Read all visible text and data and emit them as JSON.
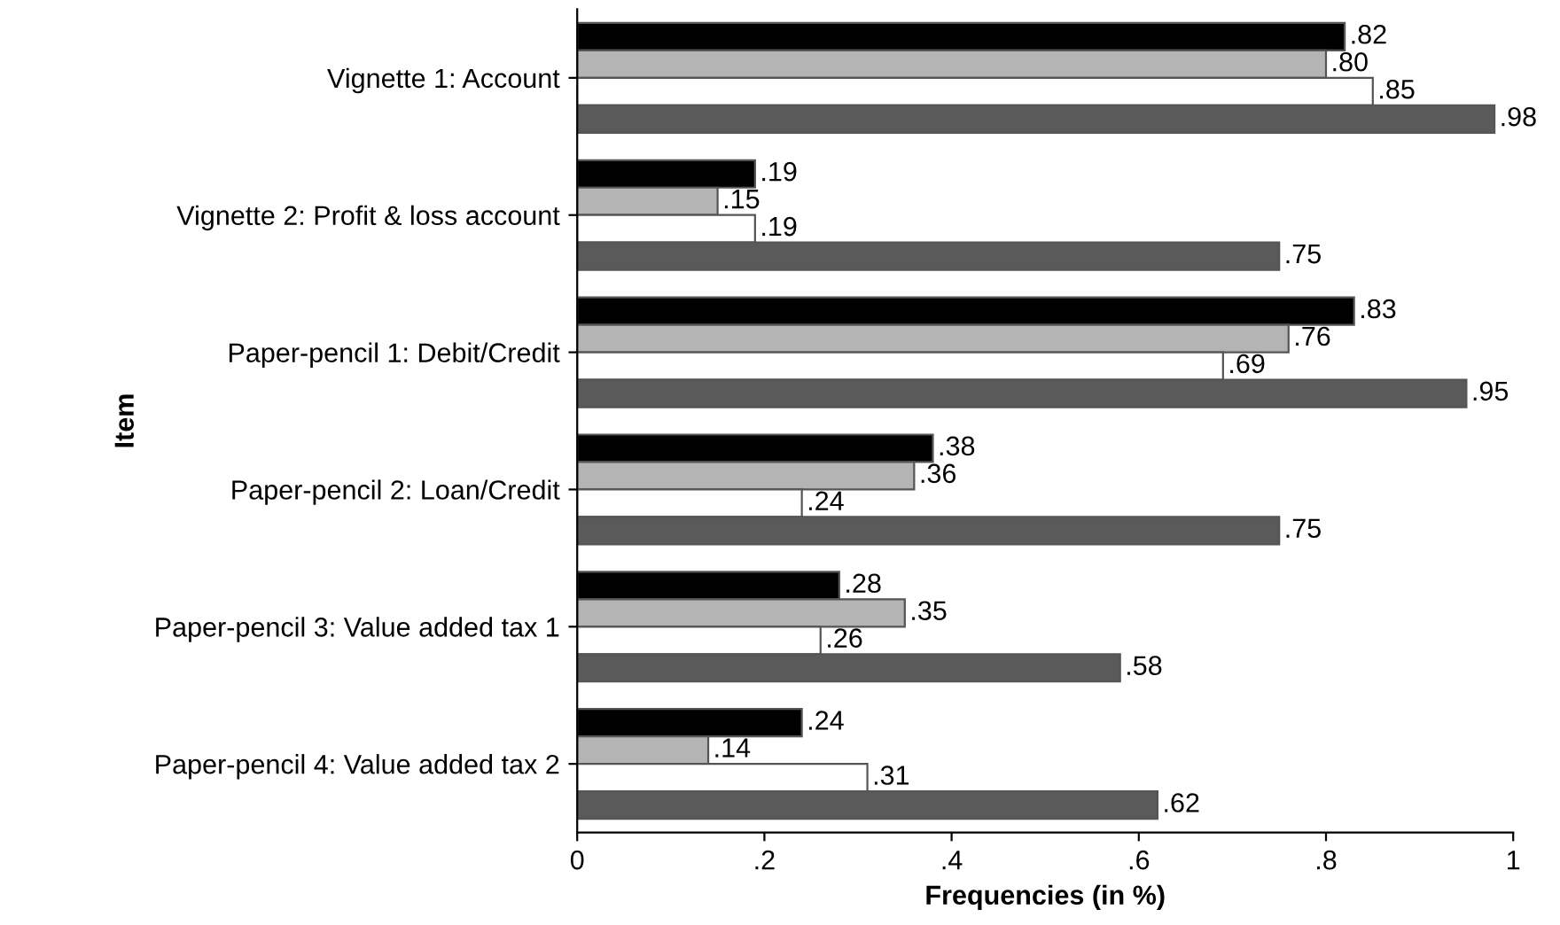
{
  "chart_data": {
    "type": "bar",
    "orientation": "horizontal",
    "xlabel": "Frequencies (in %)",
    "ylabel": "Item",
    "categories": [
      "Vignette 1: Account",
      "Vignette 2: Profit & loss account",
      "Paper-pencil 1: Debit/Credit",
      "Paper-pencil 2: Loan/Credit",
      "Paper-pencil 3: Value added tax 1",
      "Paper-pencil 4: Value added tax 2"
    ],
    "series": [
      {
        "color": "#000000",
        "values": [
          0.82,
          0.19,
          0.83,
          0.38,
          0.28,
          0.24
        ],
        "value_labels": [
          ".82",
          ".19",
          ".83",
          ".38",
          ".28",
          ".24"
        ]
      },
      {
        "color": "#b4b4b4",
        "values": [
          0.8,
          0.15,
          0.76,
          0.36,
          0.35,
          0.14
        ],
        "value_labels": [
          ".80",
          ".15",
          ".76",
          ".36",
          ".35",
          ".14"
        ]
      },
      {
        "color": "#ffffff",
        "values": [
          0.85,
          0.19,
          0.69,
          0.24,
          0.26,
          0.31
        ],
        "value_labels": [
          ".85",
          ".19",
          ".69",
          ".24",
          ".26",
          ".31"
        ]
      },
      {
        "color": "#5a5a5a",
        "values": [
          0.98,
          0.75,
          0.95,
          0.75,
          0.58,
          0.62
        ],
        "value_labels": [
          ".98",
          ".75",
          ".95",
          ".75",
          ".58",
          ".62"
        ]
      }
    ],
    "xlim": [
      0,
      1
    ],
    "xticks": [
      0,
      {
        "value": 0.2,
        "label": ".2"
      },
      {
        "value": 0.4,
        "label": ".4"
      },
      {
        "value": 0.6,
        "label": ".6"
      },
      {
        "value": 0.8,
        "label": ".8"
      },
      1
    ],
    "grid": false,
    "legend": false
  }
}
